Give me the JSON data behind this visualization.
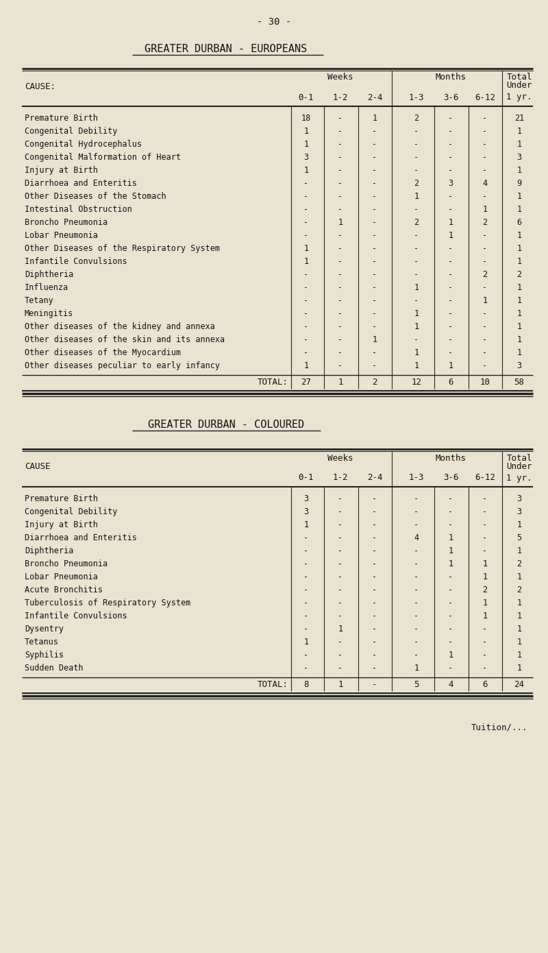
{
  "bg_color": "#e8e4d0",
  "page_number": "- 30 -",
  "table1_title": "GREATER DURBAN - EUROPEANS",
  "table1_header_cause": "CAUSE:",
  "table1_sub_headers": [
    "0-1",
    "1-2",
    "2-4",
    "1-3",
    "3-6",
    "6-12",
    "1 yr."
  ],
  "table1_rows": [
    [
      "Premature Birth",
      "18",
      "-",
      "1",
      "2",
      "-",
      "-",
      "21"
    ],
    [
      "Congenital Debility",
      "1",
      "-",
      "-",
      "-",
      "-",
      "-",
      "1"
    ],
    [
      "Congenital Hydrocephalus",
      "1",
      "-",
      "-",
      "-",
      "-",
      "-",
      "1"
    ],
    [
      "Congenital Malformation of Heart",
      "3",
      "-",
      "-",
      "-",
      "-",
      "-",
      "3"
    ],
    [
      "Injury at Birth",
      "1",
      "-",
      "-",
      "-",
      "-",
      "-",
      "1"
    ],
    [
      "Diarrhoea and Enteritis",
      "-",
      "-",
      "-",
      "2",
      "3",
      "4",
      "9"
    ],
    [
      "Other Diseases of the Stomach",
      "-",
      "-",
      "-",
      "1",
      "-",
      "-",
      "1"
    ],
    [
      "Intestinal Obstruction",
      "-",
      "-",
      "-",
      "-",
      "-",
      "1",
      "1"
    ],
    [
      "Broncho Pneumonia",
      "-",
      "1",
      "-",
      "2",
      "1",
      "2",
      "6"
    ],
    [
      "Lobar Pneumonia",
      "-",
      "-",
      "-",
      "-",
      "1",
      "-",
      "1"
    ],
    [
      "Other Diseases of the Respiratory System",
      "1",
      "-",
      "-",
      "-",
      "-",
      "-",
      "1"
    ],
    [
      "Infantile Convulsions",
      "1",
      "-",
      "-",
      "-",
      "-",
      "-",
      "1"
    ],
    [
      "Diphtheria",
      "-",
      "-",
      "-",
      "-",
      "-",
      "2",
      "2"
    ],
    [
      "Influenza",
      "-",
      "-",
      "-",
      "1",
      "-",
      "-",
      "1"
    ],
    [
      "Tetany",
      "-",
      "-",
      "-",
      "-",
      "-",
      "1",
      "1"
    ],
    [
      "Meningitis",
      "-",
      "-",
      "-",
      "1",
      "-",
      "-",
      "1"
    ],
    [
      "Other diseases of the kidney and annexa",
      "-",
      "-",
      "-",
      "1",
      "-",
      "-",
      "1"
    ],
    [
      "Other diseases of the skin and its annexa",
      "-",
      "-",
      "1",
      "-",
      "-",
      "-",
      "1"
    ],
    [
      "Other diseases of the Myocardium",
      "-",
      "-",
      "-",
      "1",
      "-",
      "-",
      "1"
    ],
    [
      "Other diseases peculiar to early infancy",
      "1",
      "-",
      "-",
      "1",
      "1",
      "-",
      "3"
    ]
  ],
  "table1_total": [
    "TOTAL:",
    "27",
    "1",
    "2",
    "12",
    "6",
    "10",
    "58"
  ],
  "table2_title": "GREATER DURBAN - COLOURED",
  "table2_header_cause": "CAUSE",
  "table2_sub_headers": [
    "0-1",
    "1-2",
    "2-4",
    "1-3",
    "3-6",
    "6-12",
    "1 yr."
  ],
  "table2_rows": [
    [
      "Premature Birth",
      "3",
      "-",
      "-",
      "-",
      "-",
      "-",
      "3"
    ],
    [
      "Congenital Debility",
      "3",
      "-",
      "-",
      "-",
      "-",
      "-",
      "3"
    ],
    [
      "Injury at Birth",
      "1",
      "-",
      "-",
      "-",
      "-",
      "-",
      "1"
    ],
    [
      "Diarrhoea and Enteritis",
      "-",
      "-",
      "-",
      "4",
      "1",
      "-",
      "5"
    ],
    [
      "Diphtheria",
      "-",
      "-",
      "-",
      "-",
      "1",
      "-",
      "1"
    ],
    [
      "Broncho Pneumonia",
      "-",
      "-",
      "-",
      "-",
      "1",
      "1",
      "2"
    ],
    [
      "Lobar Pneumonia",
      "-",
      "-",
      "-",
      "-",
      "-",
      "1",
      "1"
    ],
    [
      "Acute Bronchitis",
      "-",
      "-",
      "-",
      "-",
      "-",
      "2",
      "2"
    ],
    [
      "Tuberculosis of Respiratory System",
      "-",
      "-",
      "-",
      "-",
      "-",
      "1",
      "1"
    ],
    [
      "Infantile Convulsions",
      "-",
      "-",
      "-",
      "-",
      "-",
      "1",
      "1"
    ],
    [
      "Dysentry",
      "-",
      "1",
      "-",
      "-",
      "-",
      "-",
      "1"
    ],
    [
      "Tetanus",
      "1",
      "-",
      "-",
      "-",
      "-",
      "-",
      "1"
    ],
    [
      "Syphilis",
      "-",
      "-",
      "-",
      "-",
      "1",
      "-",
      "1"
    ],
    [
      "Sudden Death",
      "-",
      "-",
      "-",
      "1",
      "-",
      "-",
      "1"
    ]
  ],
  "table2_total": [
    "TOTAL:",
    "8",
    "1",
    "-",
    "5",
    "4",
    "6",
    "24"
  ],
  "footer": "Tuition/..."
}
